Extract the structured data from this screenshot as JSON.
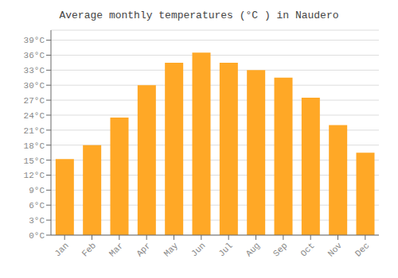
{
  "chart_data": {
    "type": "bar",
    "title": "Average monthly temperatures (°C ) in Naudero",
    "categories": [
      "Jan",
      "Feb",
      "Mar",
      "Apr",
      "May",
      "Jun",
      "Jul",
      "Aug",
      "Sep",
      "Oct",
      "Nov",
      "Dec"
    ],
    "values": [
      15.2,
      18.0,
      23.5,
      30.0,
      34.5,
      36.5,
      34.5,
      33.0,
      31.5,
      27.5,
      22.0,
      16.5
    ],
    "color": "#FFA826",
    "ylim": [
      0,
      41
    ],
    "yticks": [
      {
        "value": 0,
        "label": "0°C"
      },
      {
        "value": 3,
        "label": "3°C"
      },
      {
        "value": 6,
        "label": "6°C"
      },
      {
        "value": 9,
        "label": "9°C"
      },
      {
        "value": 12,
        "label": "12°C"
      },
      {
        "value": 15,
        "label": "15°C"
      },
      {
        "value": 18,
        "label": "18°C"
      },
      {
        "value": 21,
        "label": "21°C"
      },
      {
        "value": 24,
        "label": "24°C"
      },
      {
        "value": 27,
        "label": "27°C"
      },
      {
        "value": 30,
        "label": "30°C"
      },
      {
        "value": 33,
        "label": "33°C"
      },
      {
        "value": 36,
        "label": "36°C"
      },
      {
        "value": 39,
        "label": "39°C"
      }
    ],
    "grid": true
  }
}
